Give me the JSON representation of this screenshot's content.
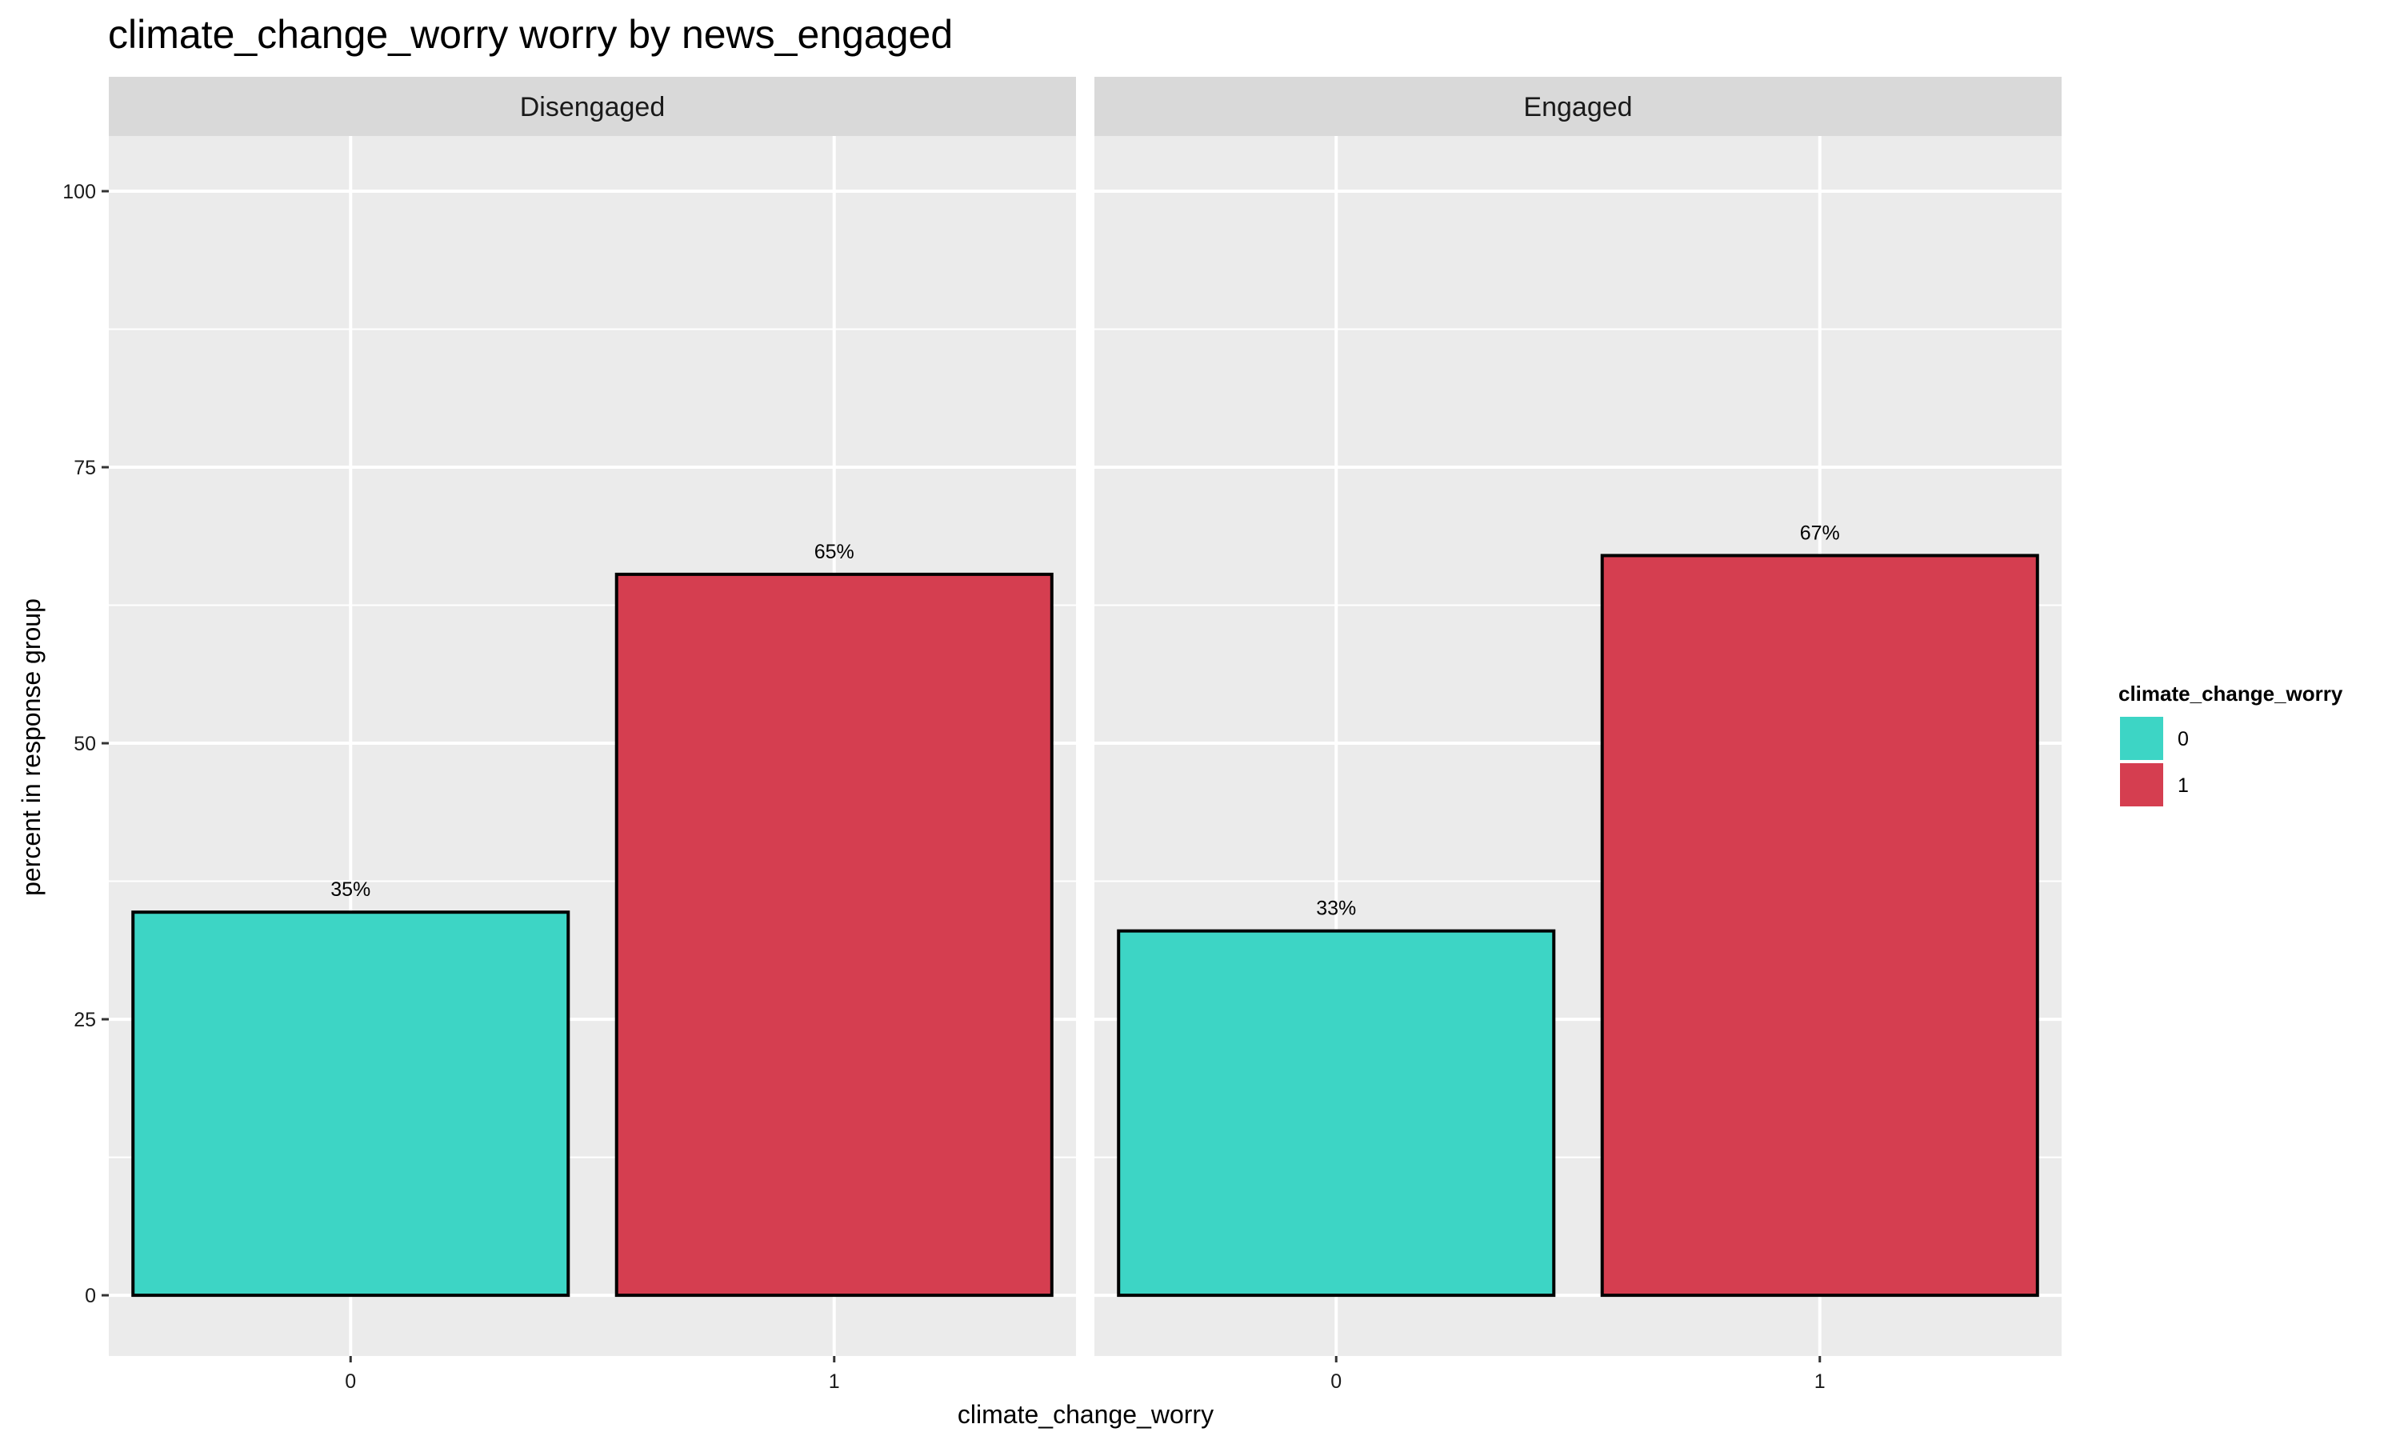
{
  "chart_data": {
    "type": "bar",
    "title": "climate_change_worry worry by news_engaged",
    "xlabel": "climate_change_worry",
    "ylabel": "percent in response group",
    "ylim": [
      -5.5,
      105
    ],
    "y_ticks": [
      0,
      25,
      50,
      75,
      100
    ],
    "categories": [
      "0",
      "1"
    ],
    "grid": true,
    "legend": {
      "title": "climate_change_worry",
      "placement": "right",
      "entries": [
        {
          "label": "0",
          "color": "#3dd5c5"
        },
        {
          "label": "1",
          "color": "#d53e50"
        }
      ]
    },
    "facets": [
      {
        "name": "Disengaged",
        "bars": [
          {
            "category": "0",
            "value": 34.7,
            "label": "35%",
            "color": "#3dd5c5"
          },
          {
            "category": "1",
            "value": 65.3,
            "label": "65%",
            "color": "#d53e50"
          }
        ]
      },
      {
        "name": "Engaged",
        "bars": [
          {
            "category": "0",
            "value": 33.0,
            "label": "33%",
            "color": "#3dd5c5"
          },
          {
            "category": "1",
            "value": 67.0,
            "label": "67%",
            "color": "#d53e50"
          }
        ]
      }
    ]
  }
}
